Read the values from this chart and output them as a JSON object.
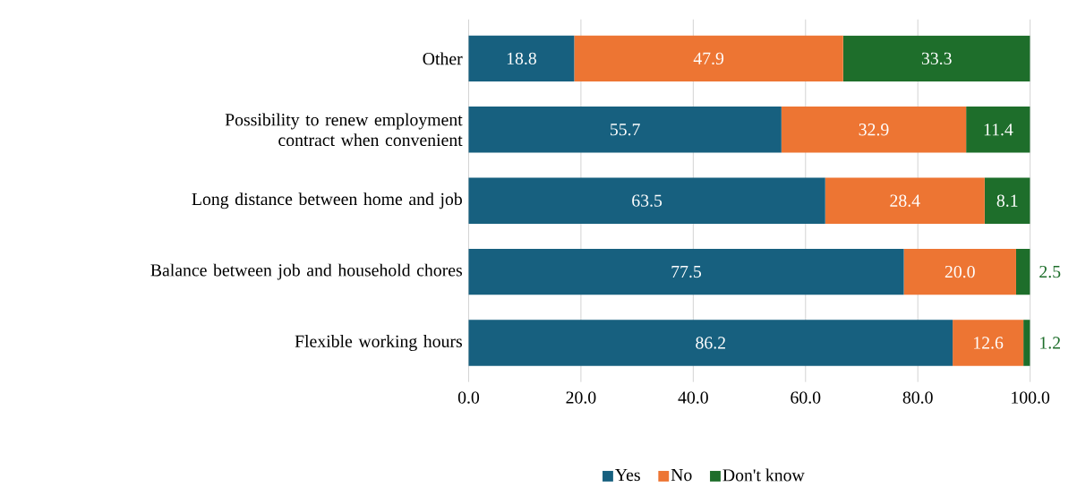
{
  "chart_data": {
    "type": "bar",
    "orientation": "horizontal",
    "stacked": true,
    "grid": "x",
    "legend": "bottom",
    "categories": [
      "Other",
      "Possibility to  renew employment contract when convenient",
      "Long distance between home and job",
      "Balance between job and household chores",
      "Flexible working hours"
    ],
    "series": [
      {
        "name": "Yes",
        "color": "#17607f",
        "values": [
          18.8,
          55.7,
          63.5,
          77.5,
          86.2
        ],
        "value_labels": [
          "18.8",
          "55.7",
          "63.5",
          "77.5",
          "86.2"
        ]
      },
      {
        "name": "No",
        "color": "#ed7533",
        "values": [
          47.9,
          32.9,
          28.4,
          20.0,
          12.6
        ],
        "value_labels": [
          "47.9",
          "32.9",
          "28.4",
          "20.0",
          "12.6"
        ]
      },
      {
        "name": "Don't know",
        "color": "#1e6e2b",
        "values": [
          33.3,
          11.4,
          8.1,
          2.5,
          1.2
        ],
        "value_labels": [
          "33.3",
          "11.4",
          "8.1",
          "2.5",
          "1.2"
        ]
      }
    ],
    "xlim": [
      0,
      100
    ],
    "xticks": [
      {
        "value": 0,
        "label": "0.0"
      },
      {
        "value": 20,
        "label": "20.0"
      },
      {
        "value": 40,
        "label": "40.0"
      },
      {
        "value": 60,
        "label": "60.0"
      },
      {
        "value": 80,
        "label": "80.0"
      },
      {
        "value": 100,
        "label": "100.0"
      }
    ]
  }
}
